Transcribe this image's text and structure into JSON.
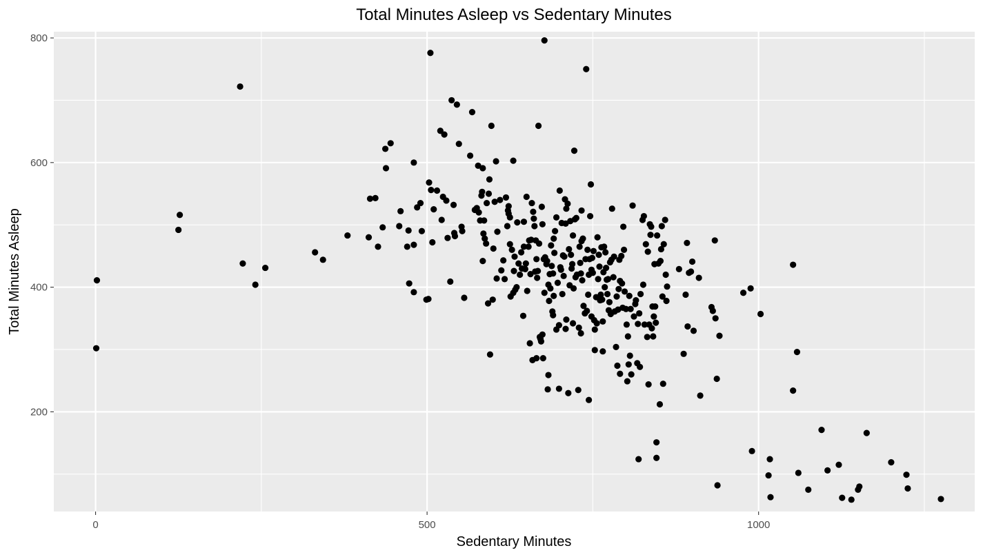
{
  "chart_data": {
    "type": "scatter",
    "title": "Total Minutes Asleep vs Sedentary Minutes",
    "xlabel": "Sedentary Minutes",
    "ylabel": "Total Minutes Asleep",
    "xlim": [
      -63,
      1326
    ],
    "ylim": [
      40,
      810
    ],
    "x_ticks": [
      0,
      500,
      1000
    ],
    "y_ticks": [
      200,
      400,
      600,
      800
    ],
    "grid": true,
    "panel_background": "#ebebeb",
    "gridline_color": "#ffffff",
    "point_color": "#000000",
    "points": [
      [
        2,
        411
      ],
      [
        1,
        302
      ],
      [
        125,
        492
      ],
      [
        127,
        516
      ],
      [
        218,
        722
      ],
      [
        222,
        438
      ],
      [
        241,
        404
      ],
      [
        256,
        431
      ],
      [
        331,
        456
      ],
      [
        343,
        444
      ],
      [
        380,
        483
      ],
      [
        412,
        480
      ],
      [
        414,
        542
      ],
      [
        422,
        543
      ],
      [
        426,
        465
      ],
      [
        433,
        496
      ],
      [
        437,
        622
      ],
      [
        438,
        591
      ],
      [
        445,
        631
      ],
      [
        458,
        498
      ],
      [
        460,
        522
      ],
      [
        470,
        465
      ],
      [
        472,
        491
      ],
      [
        473,
        406
      ],
      [
        480,
        600
      ],
      [
        480,
        392
      ],
      [
        480,
        468
      ],
      [
        485,
        528
      ],
      [
        490,
        535
      ],
      [
        492,
        490
      ],
      [
        499,
        380
      ],
      [
        502,
        381
      ],
      [
        503,
        568
      ],
      [
        505,
        776
      ],
      [
        506,
        556
      ],
      [
        508,
        472
      ],
      [
        510,
        525
      ],
      [
        515,
        555
      ],
      [
        520,
        651
      ],
      [
        522,
        508
      ],
      [
        524,
        545
      ],
      [
        526,
        645
      ],
      [
        529,
        539
      ],
      [
        531,
        479
      ],
      [
        535,
        409
      ],
      [
        537,
        700
      ],
      [
        540,
        532
      ],
      [
        541,
        487
      ],
      [
        542,
        482
      ],
      [
        545,
        693
      ],
      [
        548,
        630
      ],
      [
        552,
        497
      ],
      [
        553,
        490
      ],
      [
        556,
        383
      ],
      [
        565,
        611
      ],
      [
        568,
        681
      ],
      [
        572,
        524
      ],
      [
        575,
        527
      ],
      [
        577,
        595
      ],
      [
        578,
        520
      ],
      [
        580,
        507
      ],
      [
        582,
        547
      ],
      [
        583,
        553
      ],
      [
        584,
        591
      ],
      [
        584,
        442
      ],
      [
        585,
        486
      ],
      [
        586,
        507
      ],
      [
        587,
        478
      ],
      [
        589,
        470
      ],
      [
        590,
        535
      ],
      [
        592,
        374
      ],
      [
        593,
        550
      ],
      [
        594,
        573
      ],
      [
        595,
        292
      ],
      [
        597,
        659
      ],
      [
        599,
        380
      ],
      [
        600,
        462
      ],
      [
        602,
        537
      ],
      [
        604,
        602
      ],
      [
        605,
        414
      ],
      [
        606,
        489
      ],
      [
        610,
        540
      ],
      [
        612,
        427
      ],
      [
        615,
        443
      ],
      [
        617,
        413
      ],
      [
        619,
        544
      ],
      [
        621,
        498
      ],
      [
        622,
        523
      ],
      [
        623,
        530
      ],
      [
        623,
        518
      ],
      [
        625,
        469
      ],
      [
        625,
        512
      ],
      [
        626,
        385
      ],
      [
        628,
        460
      ],
      [
        630,
        391
      ],
      [
        630,
        603
      ],
      [
        631,
        426
      ],
      [
        632,
        449
      ],
      [
        633,
        396
      ],
      [
        635,
        400
      ],
      [
        636,
        504
      ],
      [
        638,
        438
      ],
      [
        640,
        420
      ],
      [
        642,
        456
      ],
      [
        643,
        430
      ],
      [
        645,
        354
      ],
      [
        646,
        465
      ],
      [
        646,
        505
      ],
      [
        648,
        429
      ],
      [
        649,
        438
      ],
      [
        650,
        545
      ],
      [
        651,
        394
      ],
      [
        653,
        465
      ],
      [
        654,
        475
      ],
      [
        655,
        310
      ],
      [
        656,
        421
      ],
      [
        657,
        476
      ],
      [
        658,
        535
      ],
      [
        659,
        283
      ],
      [
        660,
        521
      ],
      [
        661,
        510
      ],
      [
        662,
        498
      ],
      [
        663,
        425
      ],
      [
        664,
        475
      ],
      [
        665,
        445
      ],
      [
        665,
        286
      ],
      [
        666,
        415
      ],
      [
        667,
        426
      ],
      [
        668,
        659
      ],
      [
        669,
        470
      ],
      [
        670,
        320
      ],
      [
        671,
        317
      ],
      [
        672,
        313
      ],
      [
        673,
        529
      ],
      [
        674,
        324
      ],
      [
        674,
        501
      ],
      [
        675,
        286
      ],
      [
        676,
        445
      ],
      [
        677,
        391
      ],
      [
        677,
        796
      ],
      [
        678,
        448
      ],
      [
        680,
        437
      ],
      [
        681,
        442
      ],
      [
        682,
        236
      ],
      [
        683,
        259
      ],
      [
        683,
        404
      ],
      [
        684,
        378
      ],
      [
        685,
        421
      ],
      [
        686,
        398
      ],
      [
        687,
        467
      ],
      [
        688,
        434
      ],
      [
        689,
        361
      ],
      [
        690,
        422
      ],
      [
        690,
        355
      ],
      [
        691,
        386
      ],
      [
        691,
        478
      ],
      [
        692,
        455
      ],
      [
        693,
        490
      ],
      [
        695,
        512
      ],
      [
        695,
        332
      ],
      [
        697,
        407
      ],
      [
        699,
        339
      ],
      [
        699,
        237
      ],
      [
        700,
        555
      ],
      [
        701,
        432
      ],
      [
        702,
        428
      ],
      [
        703,
        503
      ],
      [
        704,
        389
      ],
      [
        705,
        451
      ],
      [
        706,
        418
      ],
      [
        707,
        449
      ],
      [
        708,
        541
      ],
      [
        709,
        502
      ],
      [
        709,
        333
      ],
      [
        710,
        526
      ],
      [
        710,
        348
      ],
      [
        712,
        534
      ],
      [
        713,
        230
      ],
      [
        714,
        461
      ],
      [
        715,
        403
      ],
      [
        716,
        506
      ],
      [
        717,
        452
      ],
      [
        718,
        430
      ],
      [
        719,
        437
      ],
      [
        720,
        342
      ],
      [
        720,
        483
      ],
      [
        721,
        398
      ],
      [
        722,
        619
      ],
      [
        723,
        509
      ],
      [
        724,
        416
      ],
      [
        725,
        511
      ],
      [
        726,
        420
      ],
      [
        728,
        235
      ],
      [
        729,
        335
      ],
      [
        730,
        465
      ],
      [
        731,
        439
      ],
      [
        732,
        422
      ],
      [
        732,
        326
      ],
      [
        733,
        474
      ],
      [
        733,
        523
      ],
      [
        734,
        411
      ],
      [
        735,
        478
      ],
      [
        736,
        370
      ],
      [
        738,
        358
      ],
      [
        739,
        445
      ],
      [
        740,
        750
      ],
      [
        741,
        362
      ],
      [
        742,
        460
      ],
      [
        743,
        388
      ],
      [
        744,
        420
      ],
      [
        744,
        219
      ],
      [
        745,
        445
      ],
      [
        746,
        514
      ],
      [
        747,
        565
      ],
      [
        748,
        428
      ],
      [
        748,
        353
      ],
      [
        749,
        447
      ],
      [
        750,
        423
      ],
      [
        751,
        458
      ],
      [
        752,
        347
      ],
      [
        753,
        332
      ],
      [
        753,
        299
      ],
      [
        755,
        384
      ],
      [
        756,
        342
      ],
      [
        757,
        480
      ],
      [
        758,
        413
      ],
      [
        759,
        452
      ],
      [
        760,
        433
      ],
      [
        761,
        379
      ],
      [
        762,
        388
      ],
      [
        763,
        464
      ],
      [
        764,
        380
      ],
      [
        765,
        345
      ],
      [
        765,
        297
      ],
      [
        766,
        424
      ],
      [
        767,
        465
      ],
      [
        768,
        400
      ],
      [
        769,
        456
      ],
      [
        770,
        431
      ],
      [
        771,
        412
      ],
      [
        772,
        389
      ],
      [
        773,
        413
      ],
      [
        774,
        363
      ],
      [
        775,
        376
      ],
      [
        776,
        440
      ],
      [
        777,
        357
      ],
      [
        778,
        444
      ],
      [
        779,
        526
      ],
      [
        781,
        416
      ],
      [
        782,
        449
      ],
      [
        783,
        361
      ],
      [
        785,
        304
      ],
      [
        786,
        385
      ],
      [
        787,
        274
      ],
      [
        788,
        364
      ],
      [
        789,
        397
      ],
      [
        790,
        444
      ],
      [
        791,
        410
      ],
      [
        791,
        261
      ],
      [
        793,
        450
      ],
      [
        794,
        406
      ],
      [
        795,
        367
      ],
      [
        796,
        497
      ],
      [
        797,
        460
      ],
      [
        798,
        393
      ],
      [
        800,
        365
      ],
      [
        801,
        340
      ],
      [
        802,
        249
      ],
      [
        803,
        321
      ],
      [
        804,
        276
      ],
      [
        805,
        386
      ],
      [
        806,
        290
      ],
      [
        807,
        365
      ],
      [
        808,
        260
      ],
      [
        810,
        531
      ],
      [
        812,
        353
      ],
      [
        814,
        373
      ],
      [
        815,
        379
      ],
      [
        817,
        278
      ],
      [
        818,
        341
      ],
      [
        819,
        124
      ],
      [
        820,
        358
      ],
      [
        821,
        272
      ],
      [
        822,
        389
      ],
      [
        825,
        508
      ],
      [
        826,
        404
      ],
      [
        827,
        514
      ],
      [
        828,
        340
      ],
      [
        830,
        469
      ],
      [
        832,
        320
      ],
      [
        833,
        457
      ],
      [
        834,
        244
      ],
      [
        835,
        340
      ],
      [
        836,
        501
      ],
      [
        837,
        484
      ],
      [
        838,
        497
      ],
      [
        839,
        334
      ],
      [
        840,
        369
      ],
      [
        841,
        321
      ],
      [
        842,
        353
      ],
      [
        843,
        437
      ],
      [
        844,
        369
      ],
      [
        845,
        343
      ],
      [
        846,
        151
      ],
      [
        846,
        126
      ],
      [
        847,
        483
      ],
      [
        849,
        438
      ],
      [
        851,
        212
      ],
      [
        852,
        442
      ],
      [
        853,
        461
      ],
      [
        854,
        498
      ],
      [
        855,
        385
      ],
      [
        856,
        245
      ],
      [
        857,
        469
      ],
      [
        859,
        508
      ],
      [
        860,
        420
      ],
      [
        861,
        378
      ],
      [
        862,
        401
      ],
      [
        880,
        429
      ],
      [
        887,
        293
      ],
      [
        890,
        388
      ],
      [
        892,
        471
      ],
      [
        893,
        337
      ],
      [
        895,
        423
      ],
      [
        898,
        425
      ],
      [
        900,
        441
      ],
      [
        902,
        330
      ],
      [
        910,
        415
      ],
      [
        912,
        226
      ],
      [
        929,
        368
      ],
      [
        931,
        362
      ],
      [
        934,
        475
      ],
      [
        935,
        350
      ],
      [
        937,
        253
      ],
      [
        938,
        82
      ],
      [
        941,
        322
      ],
      [
        977,
        391
      ],
      [
        988,
        398
      ],
      [
        990,
        137
      ],
      [
        1003,
        357
      ],
      [
        1015,
        98
      ],
      [
        1017,
        124
      ],
      [
        1018,
        63
      ],
      [
        1052,
        436
      ],
      [
        1052,
        234
      ],
      [
        1058,
        296
      ],
      [
        1060,
        102
      ],
      [
        1075,
        75
      ],
      [
        1095,
        171
      ],
      [
        1104,
        106
      ],
      [
        1121,
        115
      ],
      [
        1126,
        62
      ],
      [
        1140,
        59
      ],
      [
        1150,
        75
      ],
      [
        1152,
        80
      ],
      [
        1163,
        166
      ],
      [
        1200,
        119
      ],
      [
        1223,
        99
      ],
      [
        1225,
        77
      ],
      [
        1275,
        60
      ]
    ]
  }
}
